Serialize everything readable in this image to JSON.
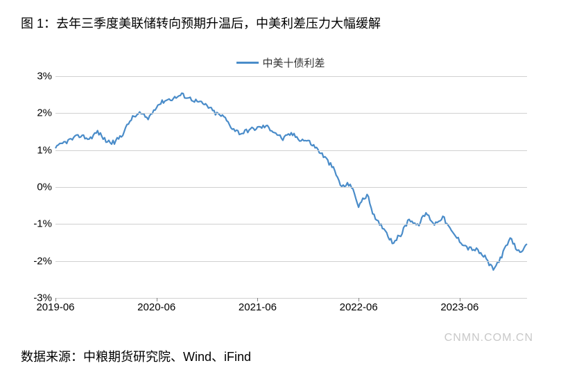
{
  "title": "图 1：去年三季度美联储转向预期升温后，中美利差压力大幅缓解",
  "legend_label": "中美十债利差",
  "source": "数据来源：中粮期货研究院、Wind、iFind",
  "watermark": "CNMN.COM.CN",
  "chart": {
    "type": "line",
    "line_color": "#4a8cc9",
    "line_width": 2.2,
    "background_color": "#ffffff",
    "grid_color": "#d0d0d0",
    "text_color": "#000000",
    "title_fontsize": 18,
    "label_fontsize": 15,
    "ylim": [
      -3,
      3
    ],
    "ytick_step": 1,
    "yticks": [
      "3%",
      "2%",
      "1%",
      "0%",
      "-1%",
      "-2%",
      "-3%"
    ],
    "xlim": [
      0,
      56
    ],
    "xtick_positions": [
      0,
      12,
      24,
      36,
      48
    ],
    "xticks": [
      "2019-06",
      "2020-06",
      "2021-06",
      "2022-06",
      "2023-06"
    ],
    "series": [
      {
        "x": 0,
        "y": 1.05
      },
      {
        "x": 1,
        "y": 1.2
      },
      {
        "x": 2,
        "y": 1.3
      },
      {
        "x": 3,
        "y": 1.4
      },
      {
        "x": 4,
        "y": 1.3
      },
      {
        "x": 5,
        "y": 1.5
      },
      {
        "x": 6,
        "y": 1.25
      },
      {
        "x": 7,
        "y": 1.2
      },
      {
        "x": 8,
        "y": 1.45
      },
      {
        "x": 9,
        "y": 1.85
      },
      {
        "x": 10,
        "y": 2.0
      },
      {
        "x": 11,
        "y": 1.85
      },
      {
        "x": 12,
        "y": 2.2
      },
      {
        "x": 13,
        "y": 2.35
      },
      {
        "x": 14,
        "y": 2.4
      },
      {
        "x": 15,
        "y": 2.5
      },
      {
        "x": 16,
        "y": 2.4
      },
      {
        "x": 17,
        "y": 2.3
      },
      {
        "x": 18,
        "y": 2.2
      },
      {
        "x": 19,
        "y": 2.0
      },
      {
        "x": 20,
        "y": 1.9
      },
      {
        "x": 21,
        "y": 1.6
      },
      {
        "x": 22,
        "y": 1.45
      },
      {
        "x": 23,
        "y": 1.55
      },
      {
        "x": 24,
        "y": 1.6
      },
      {
        "x": 25,
        "y": 1.65
      },
      {
        "x": 26,
        "y": 1.5
      },
      {
        "x": 27,
        "y": 1.3
      },
      {
        "x": 28,
        "y": 1.45
      },
      {
        "x": 29,
        "y": 1.3
      },
      {
        "x": 30,
        "y": 1.25
      },
      {
        "x": 31,
        "y": 1.05
      },
      {
        "x": 32,
        "y": 0.8
      },
      {
        "x": 33,
        "y": 0.5
      },
      {
        "x": 34,
        "y": 0.0
      },
      {
        "x": 35,
        "y": 0.1
      },
      {
        "x": 36,
        "y": -0.5
      },
      {
        "x": 37,
        "y": -0.2
      },
      {
        "x": 38,
        "y": -0.9
      },
      {
        "x": 39,
        "y": -1.1
      },
      {
        "x": 40,
        "y": -1.5
      },
      {
        "x": 41,
        "y": -1.3
      },
      {
        "x": 42,
        "y": -0.85
      },
      {
        "x": 43,
        "y": -1.05
      },
      {
        "x": 44,
        "y": -0.7
      },
      {
        "x": 45,
        "y": -1.0
      },
      {
        "x": 46,
        "y": -0.8
      },
      {
        "x": 47,
        "y": -1.2
      },
      {
        "x": 48,
        "y": -1.45
      },
      {
        "x": 49,
        "y": -1.65
      },
      {
        "x": 50,
        "y": -1.7
      },
      {
        "x": 51,
        "y": -1.9
      },
      {
        "x": 52,
        "y": -2.25
      },
      {
        "x": 53,
        "y": -1.85
      },
      {
        "x": 54,
        "y": -1.4
      },
      {
        "x": 55,
        "y": -1.75
      },
      {
        "x": 56,
        "y": -1.6
      }
    ]
  }
}
